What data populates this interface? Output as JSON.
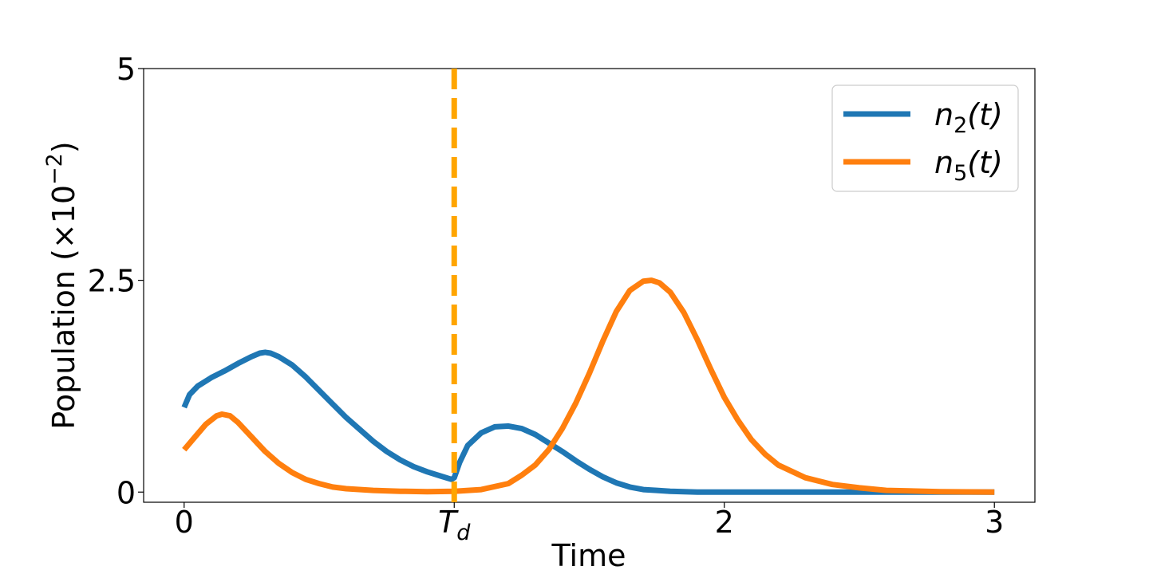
{
  "chart_data": {
    "type": "line",
    "xlabel": "Time",
    "ylabel": "Population (×10",
    "ylabel_exp": "−2",
    "ylabel_close": ")",
    "xlim": [
      -0.15,
      3.15
    ],
    "ylim": [
      -0.12,
      5.0
    ],
    "x_ticks": [
      {
        "value": 0,
        "label": "0"
      },
      {
        "value": 1,
        "label": "T",
        "sub": "d"
      },
      {
        "value": 2,
        "label": "2"
      },
      {
        "value": 3,
        "label": "3"
      }
    ],
    "y_ticks": [
      {
        "value": 0,
        "label": "0"
      },
      {
        "value": 2.5,
        "label": "2.5"
      },
      {
        "value": 5,
        "label": "5"
      }
    ],
    "vline": {
      "x": 1,
      "color": "#ffa500",
      "style": "dashed"
    },
    "legend": {
      "placement": "top-right"
    },
    "series": [
      {
        "name": "n2(t)",
        "name_base": "n",
        "name_sub": "2",
        "name_tail": "(t)",
        "color": "#1f77b4",
        "points": [
          [
            0.0,
            1.0
          ],
          [
            0.02,
            1.15
          ],
          [
            0.05,
            1.25
          ],
          [
            0.1,
            1.35
          ],
          [
            0.15,
            1.43
          ],
          [
            0.2,
            1.52
          ],
          [
            0.25,
            1.6
          ],
          [
            0.28,
            1.64
          ],
          [
            0.3,
            1.65
          ],
          [
            0.32,
            1.64
          ],
          [
            0.35,
            1.6
          ],
          [
            0.4,
            1.5
          ],
          [
            0.45,
            1.36
          ],
          [
            0.5,
            1.2
          ],
          [
            0.55,
            1.04
          ],
          [
            0.6,
            0.88
          ],
          [
            0.65,
            0.74
          ],
          [
            0.7,
            0.6
          ],
          [
            0.75,
            0.48
          ],
          [
            0.8,
            0.38
          ],
          [
            0.85,
            0.3
          ],
          [
            0.9,
            0.24
          ],
          [
            0.95,
            0.19
          ],
          [
            0.99,
            0.15
          ],
          [
            1.0,
            0.17
          ],
          [
            1.02,
            0.35
          ],
          [
            1.05,
            0.55
          ],
          [
            1.1,
            0.7
          ],
          [
            1.15,
            0.77
          ],
          [
            1.2,
            0.78
          ],
          [
            1.25,
            0.75
          ],
          [
            1.3,
            0.68
          ],
          [
            1.35,
            0.58
          ],
          [
            1.4,
            0.48
          ],
          [
            1.45,
            0.37
          ],
          [
            1.5,
            0.27
          ],
          [
            1.55,
            0.18
          ],
          [
            1.6,
            0.11
          ],
          [
            1.65,
            0.06
          ],
          [
            1.7,
            0.03
          ],
          [
            1.75,
            0.02
          ],
          [
            1.8,
            0.01
          ],
          [
            1.9,
            0.0
          ],
          [
            2.0,
            0.0
          ],
          [
            2.5,
            0.0
          ],
          [
            3.0,
            0.0
          ]
        ]
      },
      {
        "name": "n5(t)",
        "name_base": "n",
        "name_sub": "5",
        "name_tail": "(t)",
        "color": "#ff7f0e",
        "points": [
          [
            0.0,
            0.5
          ],
          [
            0.04,
            0.65
          ],
          [
            0.08,
            0.8
          ],
          [
            0.12,
            0.9
          ],
          [
            0.14,
            0.92
          ],
          [
            0.17,
            0.9
          ],
          [
            0.2,
            0.82
          ],
          [
            0.25,
            0.65
          ],
          [
            0.3,
            0.48
          ],
          [
            0.35,
            0.34
          ],
          [
            0.4,
            0.23
          ],
          [
            0.45,
            0.15
          ],
          [
            0.5,
            0.1
          ],
          [
            0.55,
            0.06
          ],
          [
            0.6,
            0.04
          ],
          [
            0.7,
            0.02
          ],
          [
            0.8,
            0.01
          ],
          [
            0.9,
            0.005
          ],
          [
            1.0,
            0.01
          ],
          [
            1.1,
            0.03
          ],
          [
            1.2,
            0.1
          ],
          [
            1.25,
            0.2
          ],
          [
            1.3,
            0.32
          ],
          [
            1.35,
            0.5
          ],
          [
            1.4,
            0.75
          ],
          [
            1.45,
            1.05
          ],
          [
            1.5,
            1.4
          ],
          [
            1.55,
            1.78
          ],
          [
            1.6,
            2.13
          ],
          [
            1.65,
            2.38
          ],
          [
            1.7,
            2.49
          ],
          [
            1.73,
            2.5
          ],
          [
            1.76,
            2.47
          ],
          [
            1.8,
            2.36
          ],
          [
            1.85,
            2.12
          ],
          [
            1.9,
            1.8
          ],
          [
            1.95,
            1.45
          ],
          [
            2.0,
            1.12
          ],
          [
            2.05,
            0.85
          ],
          [
            2.1,
            0.62
          ],
          [
            2.15,
            0.45
          ],
          [
            2.2,
            0.32
          ],
          [
            2.3,
            0.17
          ],
          [
            2.4,
            0.09
          ],
          [
            2.5,
            0.05
          ],
          [
            2.6,
            0.02
          ],
          [
            2.8,
            0.005
          ],
          [
            3.0,
            0.0
          ]
        ]
      }
    ]
  }
}
